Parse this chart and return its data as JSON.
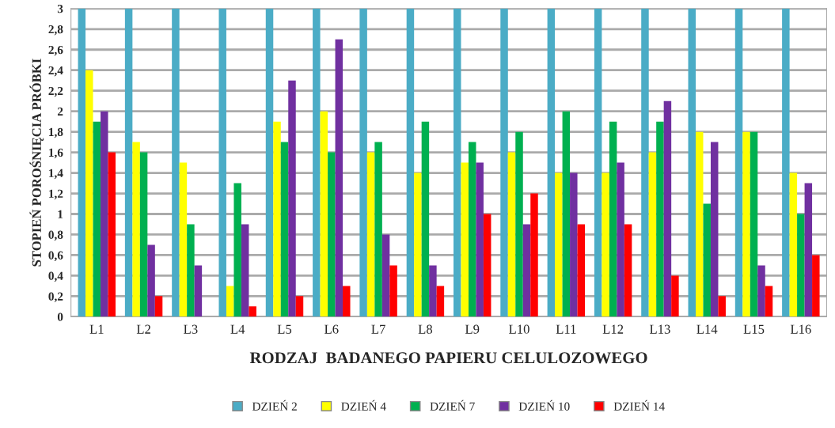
{
  "chart_data": {
    "type": "bar",
    "xlabel": "RODZAJ  BADANEGO PAPIERU CELULOZOWEGO",
    "ylabel": "STOPIEŃ POROŚNIĘCIA PRÓBKI",
    "categories": [
      "L1",
      "L2",
      "L3",
      "L4",
      "L5",
      "L6",
      "L7",
      "L8",
      "L9",
      "L10",
      "L11",
      "L12",
      "L13",
      "L14",
      "L15",
      "L16"
    ],
    "series": [
      {
        "name": "DZIEŃ 2",
        "color": "#4bacc6",
        "values": [
          3,
          3,
          3,
          3,
          3,
          3,
          3,
          3,
          3,
          3,
          3,
          3,
          3,
          3,
          3,
          3
        ]
      },
      {
        "name": "DZIEŃ 4",
        "color": "#ffff00",
        "values": [
          2.4,
          1.7,
          1.5,
          0.3,
          1.9,
          2.0,
          1.6,
          1.4,
          1.5,
          1.6,
          1.4,
          1.4,
          1.6,
          1.8,
          1.8,
          1.4
        ]
      },
      {
        "name": "DZIEŃ 7",
        "color": "#00b050",
        "values": [
          1.9,
          1.6,
          0.9,
          1.3,
          1.7,
          1.6,
          1.7,
          1.9,
          1.7,
          1.8,
          2.0,
          1.9,
          1.9,
          1.1,
          1.8,
          1.0
        ]
      },
      {
        "name": "DZIEŃ 10",
        "color": "#7030a0",
        "values": [
          2.0,
          0.7,
          0.5,
          0.9,
          2.3,
          2.7,
          0.8,
          0.5,
          1.5,
          0.9,
          1.4,
          1.5,
          2.1,
          1.7,
          0.5,
          1.3
        ]
      },
      {
        "name": "DZIEŃ 14",
        "color": "#ff0000",
        "values": [
          1.6,
          0.2,
          0,
          0.1,
          0.2,
          0.3,
          0.5,
          0.3,
          1.0,
          1.2,
          0.9,
          0.9,
          0.4,
          0.2,
          0.3,
          0.6
        ]
      }
    ],
    "ylim": [
      0,
      3
    ],
    "yticks": [
      0,
      {
        "value": 0.2,
        "label": "0,2"
      },
      {
        "value": 0.4,
        "label": "0,4"
      },
      {
        "value": 0.6,
        "label": "0,6"
      },
      {
        "value": 0.8,
        "label": "0,8"
      },
      1,
      {
        "value": 1.2,
        "label": "1,2"
      },
      {
        "value": 1.4,
        "label": "1,4"
      },
      {
        "value": 1.6,
        "label": "1,6"
      },
      {
        "value": 1.8,
        "label": "1,8"
      },
      2,
      {
        "value": 2.2,
        "label": "2,2"
      },
      {
        "value": 2.4,
        "label": "2,4"
      },
      {
        "value": 2.6,
        "label": "2,6"
      },
      {
        "value": 2.8,
        "label": "2,8"
      },
      3
    ],
    "grid": "y",
    "legend": "bottom"
  }
}
